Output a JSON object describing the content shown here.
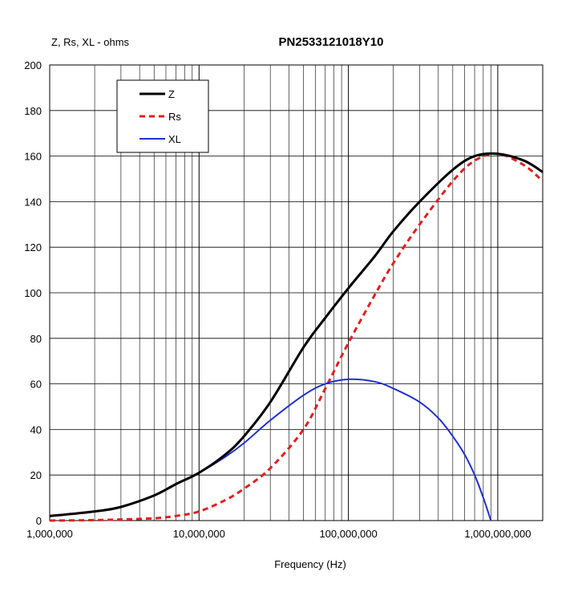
{
  "chart_data": {
    "type": "line",
    "title": "PN2533121018Y10",
    "ylabel": "Z, Rs, XL - ohms",
    "xlabel": "Frequency (Hz)",
    "x_scale": "log",
    "xlim": [
      1000000,
      2000000000
    ],
    "ylim": [
      0,
      200
    ],
    "y_ticks": [
      0,
      20,
      40,
      60,
      80,
      100,
      120,
      140,
      160,
      180,
      200
    ],
    "y_tick_labels": [
      "0",
      "20",
      "40",
      "60",
      "80",
      "100",
      "120",
      "140",
      "160",
      "180",
      "200"
    ],
    "x_ticks": [
      1000000,
      10000000,
      100000000,
      1000000000
    ],
    "x_tick_labels": [
      "1,000,000",
      "10,000,000",
      "100,000,000",
      "1,000,000,000"
    ],
    "grid": true,
    "legend": "top-left",
    "series": [
      {
        "name": "Z",
        "color": "#000000",
        "style": "solid",
        "x": [
          1000000,
          2000000,
          3000000,
          5000000,
          7000000,
          10000000,
          15000000,
          20000000,
          30000000,
          50000000,
          70000000,
          100000000,
          150000000,
          200000000,
          300000000,
          500000000,
          700000000,
          1000000000,
          1500000000,
          2000000000
        ],
        "y": [
          2,
          4,
          6,
          11,
          16,
          21,
          29,
          37,
          52,
          76,
          89,
          102,
          116,
          127,
          140,
          154,
          160,
          161,
          158,
          153
        ]
      },
      {
        "name": "Rs",
        "color": "#e02020",
        "style": "dashed",
        "x": [
          1000000,
          2000000,
          3000000,
          5000000,
          7000000,
          10000000,
          15000000,
          20000000,
          30000000,
          50000000,
          70000000,
          100000000,
          150000000,
          200000000,
          300000000,
          500000000,
          700000000,
          1000000000,
          1500000000,
          2000000000
        ],
        "y": [
          0,
          0.2,
          0.5,
          1,
          2,
          4,
          9,
          14,
          23,
          40,
          58,
          78,
          99,
          113,
          130,
          149,
          158,
          161,
          156,
          149
        ]
      },
      {
        "name": "XL",
        "color": "#1f2fd0",
        "style": "solid",
        "x": [
          1000000,
          2000000,
          3000000,
          5000000,
          7000000,
          10000000,
          15000000,
          20000000,
          30000000,
          50000000,
          70000000,
          100000000,
          150000000,
          200000000,
          300000000,
          400000000,
          500000000,
          600000000,
          700000000,
          800000000,
          900000000
        ],
        "y": [
          2,
          4,
          6,
          11,
          16,
          21,
          28,
          34,
          44,
          55,
          60,
          62,
          61,
          58,
          52,
          45,
          37,
          29,
          20,
          10,
          0
        ]
      }
    ]
  }
}
